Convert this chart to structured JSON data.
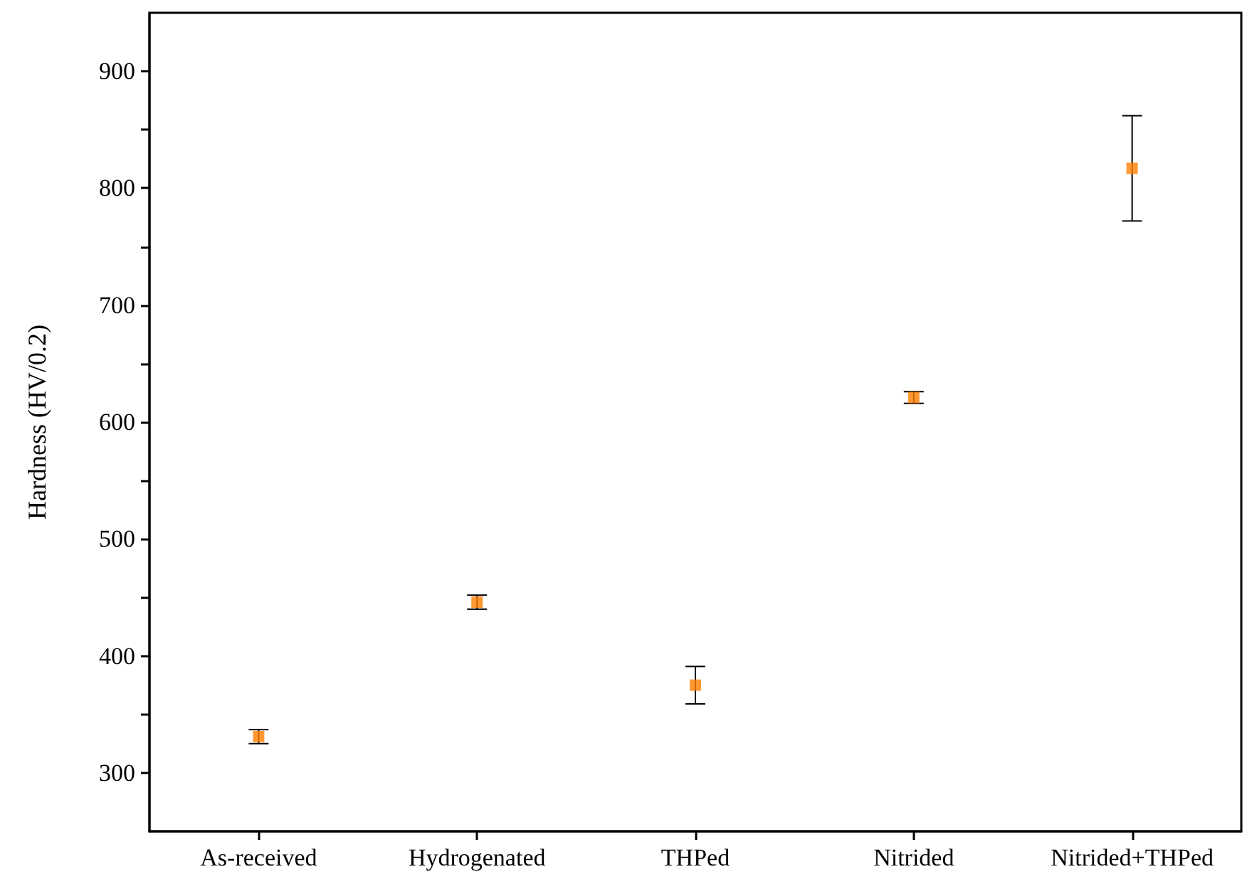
{
  "chart_data": {
    "type": "scatter",
    "ylabel": "Hardness (HV/0.2)",
    "categories": [
      "As-received",
      "Hydrogenated",
      "THPed",
      "Nitrided",
      "Nitrided+THPed"
    ],
    "values": [
      331,
      446,
      375,
      621,
      817
    ],
    "errors": [
      6,
      6,
      16,
      5,
      45
    ],
    "color": "#ff7f00",
    "marker": "square",
    "ylim": [
      250,
      950
    ],
    "yticks": [
      300,
      {
        "value": 350,
        "label": null
      },
      400,
      {
        "value": 450,
        "label": null
      },
      500,
      {
        "value": 550,
        "label": null
      },
      600,
      {
        "value": 650,
        "label": null
      },
      700,
      {
        "value": 750,
        "label": null
      },
      800,
      {
        "value": 850,
        "label": null
      },
      900
    ]
  }
}
